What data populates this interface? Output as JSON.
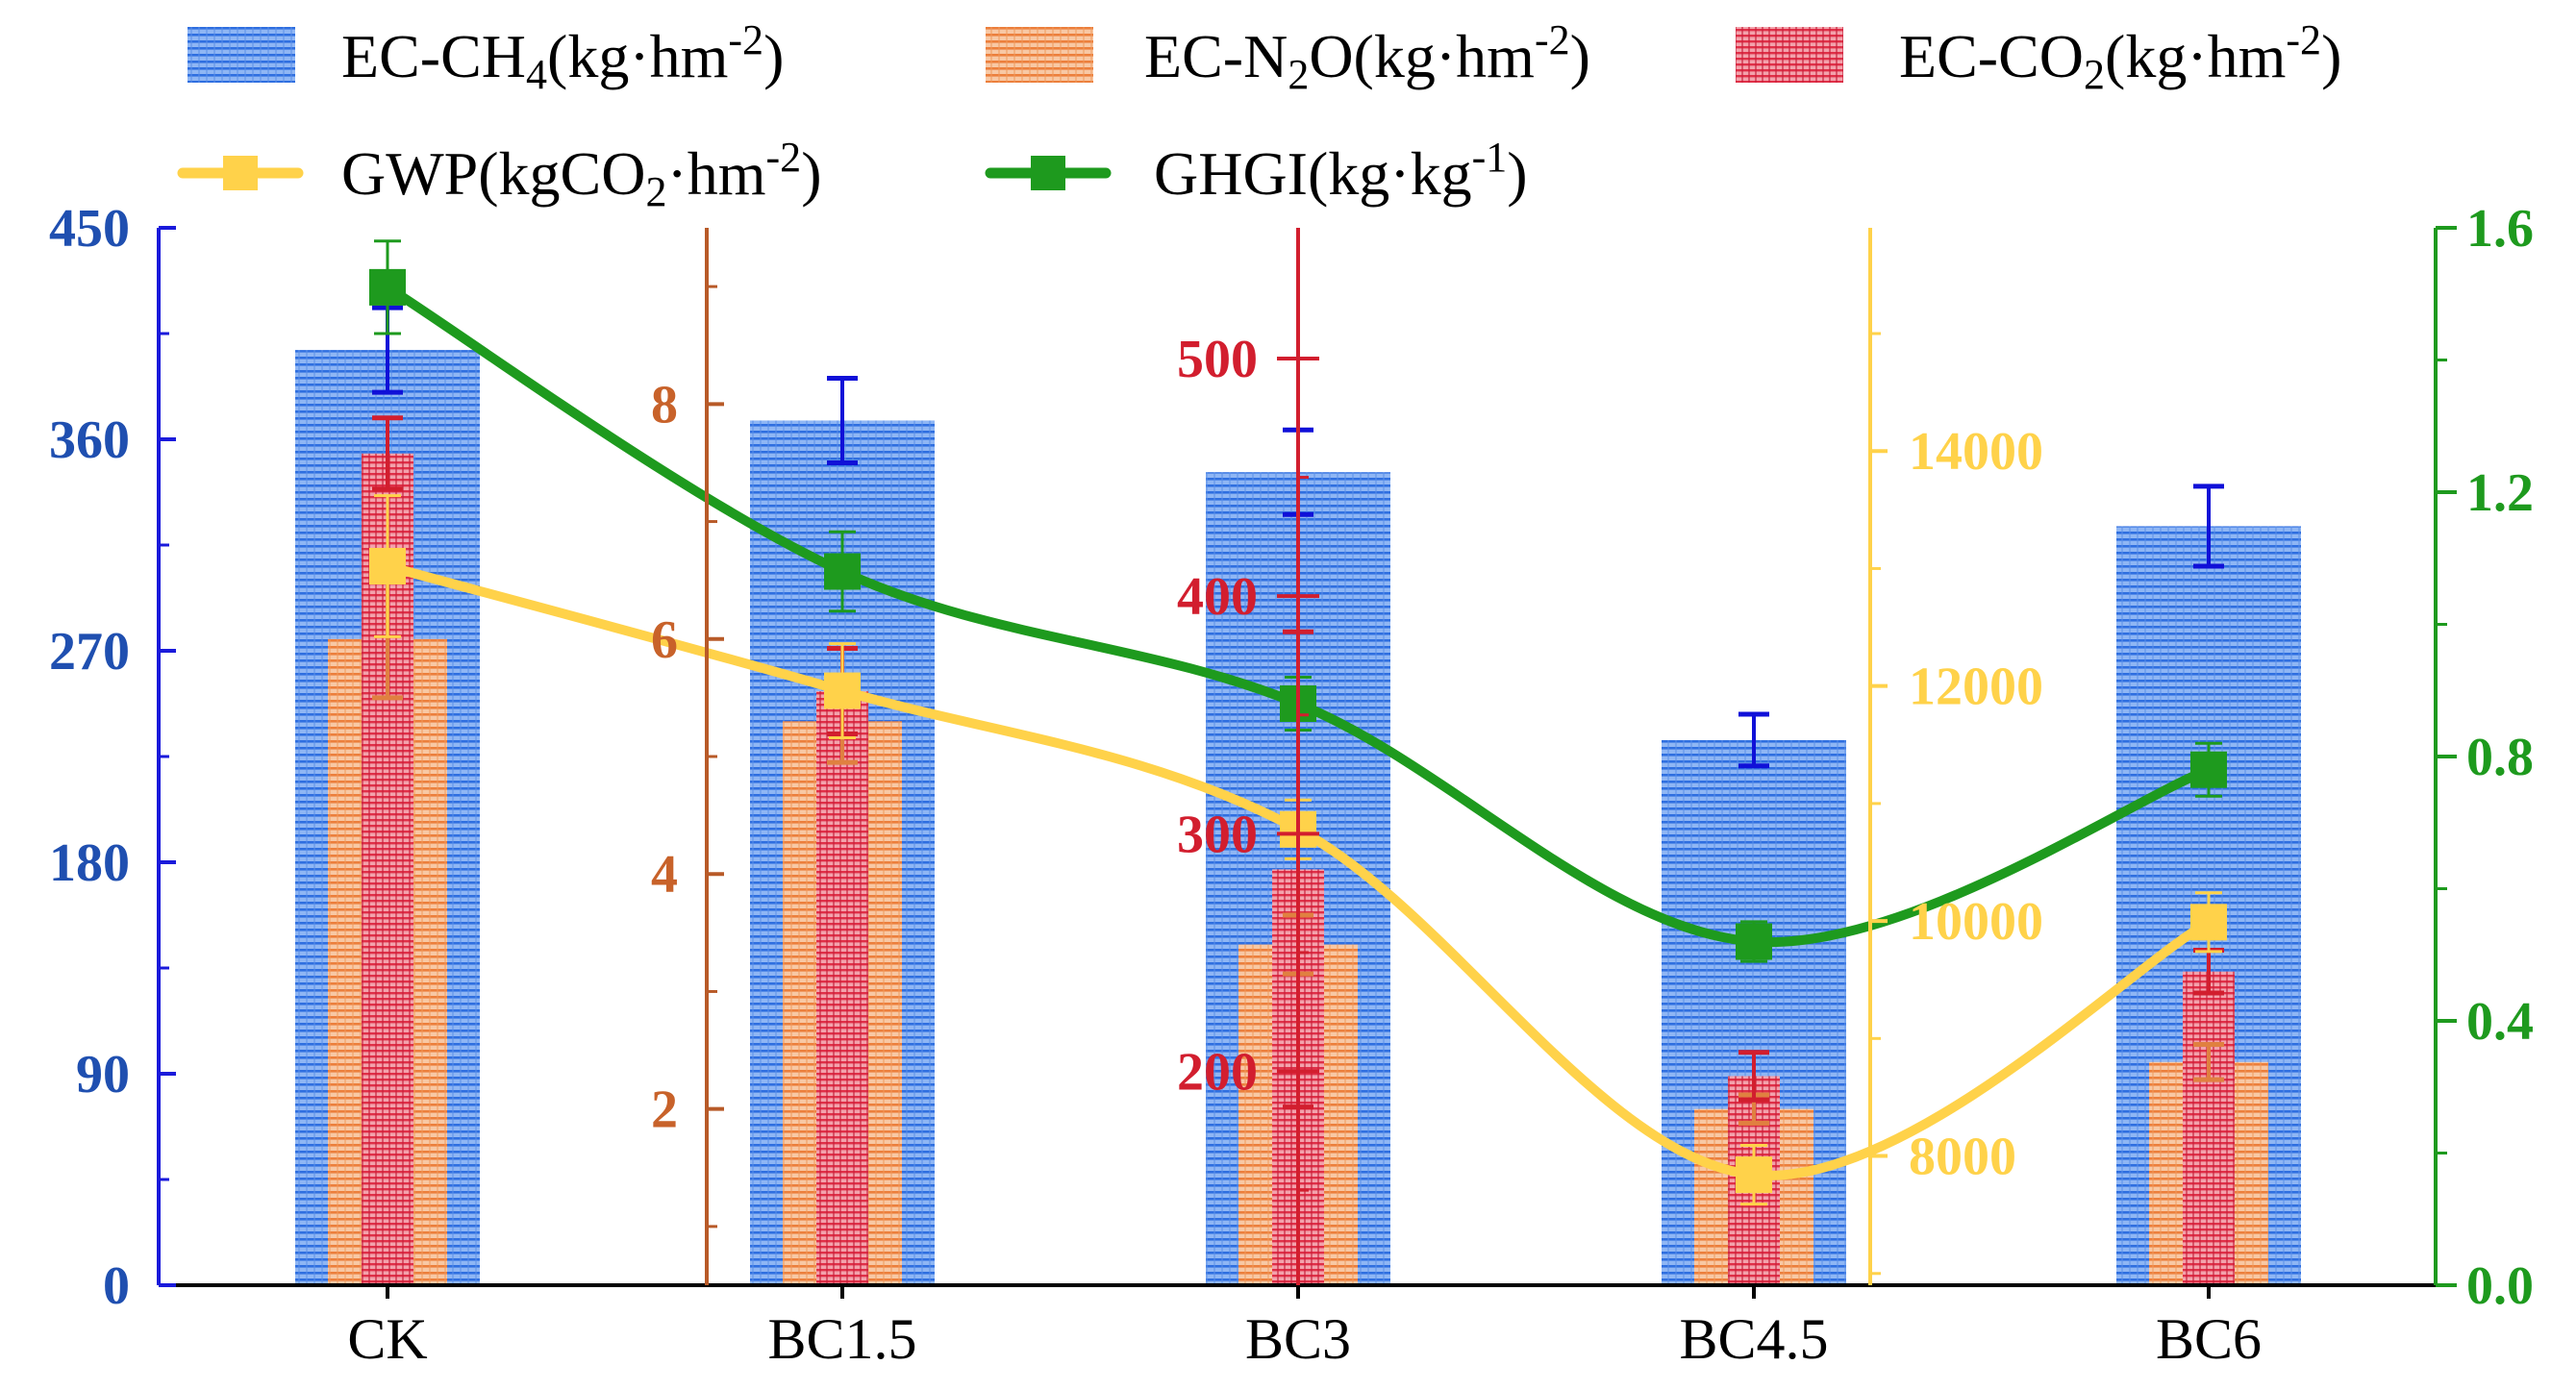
{
  "chart_data": {
    "type": "bar",
    "categories": [
      "CK",
      "BC1.5",
      "BC3",
      "BC4.5",
      "BC6"
    ],
    "legend": {
      "ch4": {
        "label": "EC-CH",
        "sub": "4",
        "unit": "(kg·hm",
        "sup": "-2",
        "close": ")"
      },
      "n2o": {
        "label": "EC-N",
        "sub": "2",
        "mid": "O",
        "unit": "(kg·hm",
        "sup": "-2",
        "close": ")"
      },
      "co2": {
        "label": "EC-CO",
        "sub": "2",
        "unit": "(kg·hm",
        "sup": "-2",
        "close": ")"
      },
      "gwp": {
        "label": "GWP(kgCO",
        "sub": "2",
        "unit": "·hm",
        "sup": "-2",
        "close": ")"
      },
      "ghgi": {
        "label": "GHGI(kg·kg",
        "sup": "-1",
        "close": ")"
      }
    },
    "axes": {
      "ch4": {
        "min": 0,
        "max": 450,
        "ticks": [
          "0",
          "90",
          "180",
          "270",
          "360",
          "450"
        ],
        "color": "#1f4fb0",
        "line_color": "#1a1adb"
      },
      "n2o": {
        "min": 0.5,
        "max": 9.5,
        "ticks": [
          "2",
          "4",
          "6",
          "8"
        ],
        "tick_values": [
          2,
          4,
          6,
          8
        ],
        "color": "#c8622a",
        "line_color": "#b85a28"
      },
      "co2": {
        "min": 110,
        "max": 555,
        "ticks": [
          "200",
          "300",
          "400",
          "500"
        ],
        "tick_values": [
          200,
          300,
          400,
          500
        ],
        "color": "#d21e2e",
        "line_color": "#d21e2e"
      },
      "gwp": {
        "min": 6900,
        "max": 15900,
        "ticks": [
          "8000",
          "10000",
          "12000",
          "14000"
        ],
        "tick_values": [
          8000,
          10000,
          12000,
          14000
        ],
        "color": "#ffd24a",
        "line_color": "#ffd24a"
      },
      "ghgi": {
        "min": 0,
        "max": 1.6,
        "ticks": [
          "0.0",
          "0.4",
          "0.8",
          "1.2",
          "1.6"
        ],
        "tick_values": [
          0,
          0.4,
          0.8,
          1.2,
          1.6
        ],
        "color": "#1e9a1e",
        "line_color": "#1e9a1e"
      }
    },
    "series": [
      {
        "name": "EC-CH4",
        "axis": "ch4",
        "kind": "bar",
        "values": [
          398,
          368,
          346,
          232,
          323
        ],
        "errors": [
          18,
          18,
          18,
          11,
          17
        ],
        "color": "#2f6fe0",
        "err_color": "#1010d8"
      },
      {
        "name": "EC-N2O",
        "axis": "n2o",
        "kind": "bar",
        "values": [
          6.0,
          5.3,
          3.4,
          2.0,
          2.4
        ],
        "errors": [
          0.5,
          0.35,
          0.25,
          0.12,
          0.15
        ],
        "color": "#ee8a4a",
        "err_color": "#e08040"
      },
      {
        "name": "EC-CO2",
        "axis": "co2",
        "kind": "bar",
        "values": [
          460,
          360,
          285,
          198,
          242
        ],
        "errors": [
          15,
          18,
          100,
          10,
          9
        ],
        "color": "#e8324a",
        "err_color": "#d21e2e"
      },
      {
        "name": "GWP",
        "axis": "gwp",
        "kind": "line",
        "values": [
          13020,
          11960,
          10780,
          7840,
          9990
        ],
        "errors": [
          600,
          400,
          250,
          250,
          250
        ],
        "color": "#ffd24a"
      },
      {
        "name": "GHGI",
        "axis": "ghgi",
        "kind": "line",
        "values": [
          1.51,
          1.08,
          0.88,
          0.52,
          0.78
        ],
        "errors": [
          0.07,
          0.06,
          0.04,
          0.03,
          0.04
        ],
        "color": "#1e9a1e"
      }
    ]
  }
}
